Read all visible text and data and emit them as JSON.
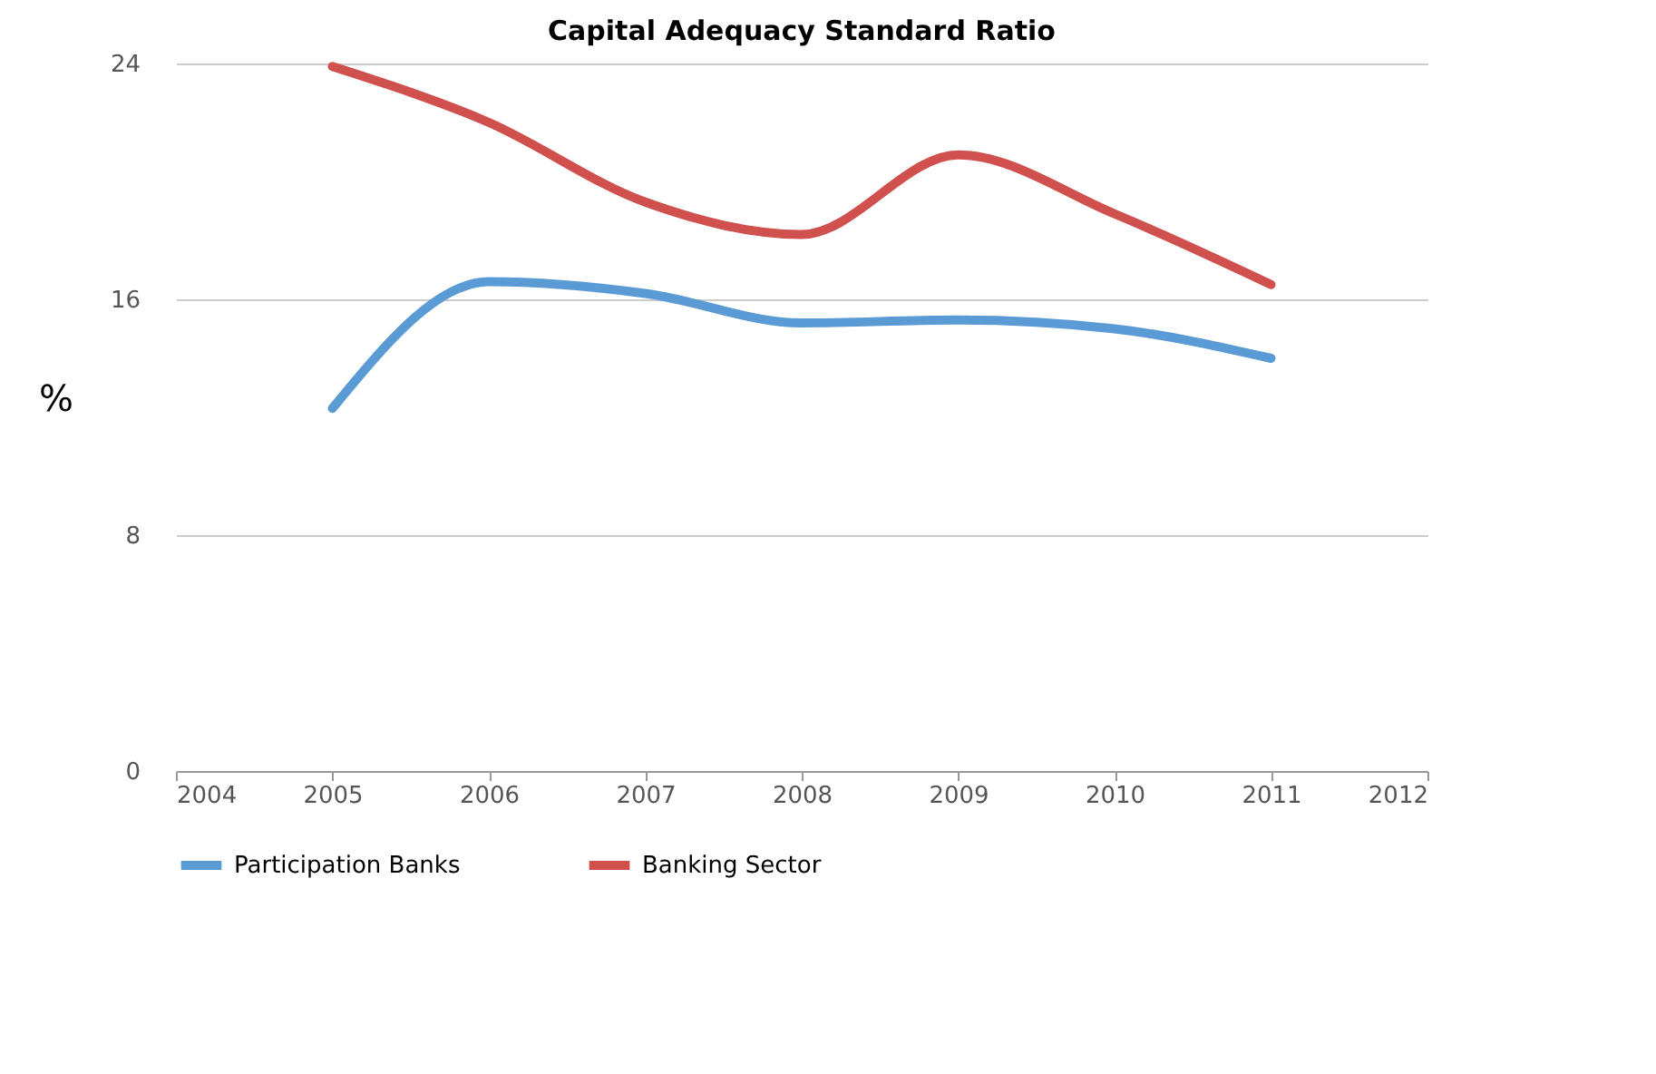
{
  "chart_data": {
    "type": "line",
    "title": "Capital Adequacy Standard Ratio",
    "ylabel": "%",
    "x": [
      2005,
      2006,
      2007,
      2008,
      2009,
      2010,
      2011
    ],
    "series": [
      {
        "name": "Participation Banks",
        "color": "#5b9bd5",
        "values": [
          12.3,
          16.6,
          16.2,
          15.2,
          15.3,
          15.0,
          14.0
        ]
      },
      {
        "name": "Banking Sector",
        "color": "#d0504d",
        "values": [
          23.9,
          22.0,
          19.3,
          18.2,
          20.9,
          18.9,
          16.5
        ]
      }
    ],
    "xlim": [
      2004,
      2012
    ],
    "xticks": [
      2004,
      2005,
      2006,
      2007,
      2008,
      2009,
      2010,
      2011,
      2012
    ],
    "ylim": [
      0,
      24
    ],
    "yticks": [
      0,
      8,
      16,
      24
    ],
    "grid": "y",
    "legend": "bottom",
    "marker": "none",
    "line_style": "solid"
  }
}
